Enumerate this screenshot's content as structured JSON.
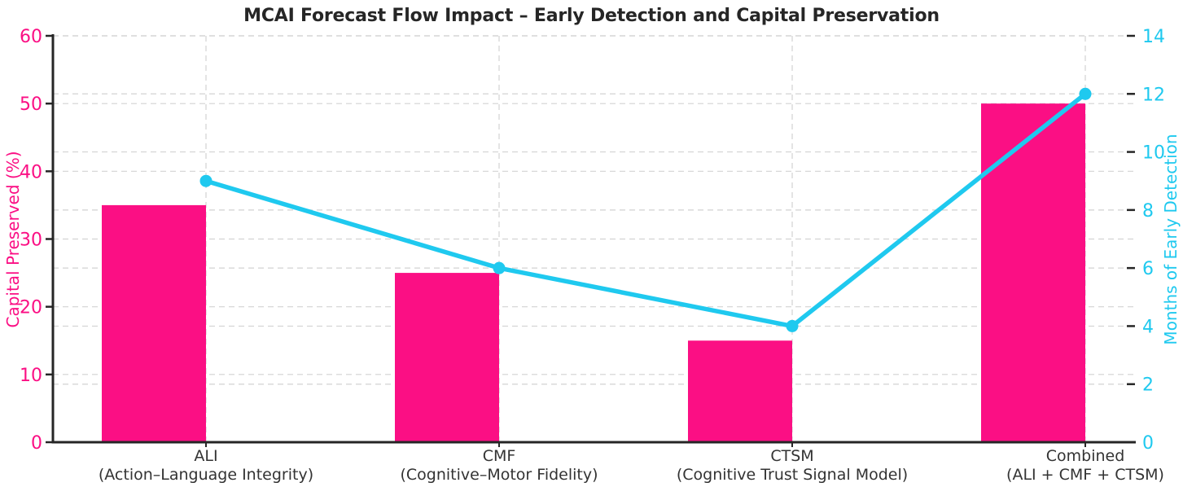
{
  "title": "MCAI Forecast Flow Impact – Early Detection and Capital Preservation",
  "colors": {
    "title": "#262626",
    "spine": "#262626",
    "xtick_label": "#333333",
    "grid": "#d2d2d2",
    "background": "#ffffff",
    "bar_pink": "#FB0F84",
    "line_cyan": "#1FC9EF"
  },
  "chart_data": {
    "type": "bar",
    "overlay": "line",
    "title": "MCAI Forecast Flow Impact – Early Detection and Capital Preservation",
    "categories": [
      "ALI",
      "CMF",
      "CTSM",
      "Combined"
    ],
    "category_sublabels": [
      "(Action–Language Integrity)",
      "(Cognitive–Motor Fidelity)",
      "(Cognitive Trust Signal Model)",
      "(ALI + CMF + CTSM)"
    ],
    "series": [
      {
        "name": "Capital Preserved (%)",
        "type": "bar",
        "axis": "left",
        "color": "#FB0F84",
        "values": [
          35,
          25,
          15,
          50
        ]
      },
      {
        "name": "Months of Early Detection",
        "type": "line",
        "axis": "right",
        "color": "#1FC9EF",
        "values": [
          9,
          6,
          4,
          12
        ]
      }
    ],
    "left_axis": {
      "label": "Capital Preserved (%)",
      "color": "#FB0F84",
      "min": 0,
      "max": 60,
      "ticks": [
        0,
        10,
        20,
        30,
        40,
        50,
        60
      ]
    },
    "right_axis": {
      "label": "Months of Early Detection",
      "color": "#1FC9EF",
      "min": 0,
      "max": 14,
      "ticks": [
        0,
        2,
        4,
        6,
        8,
        10,
        12,
        14
      ]
    },
    "grid": {
      "style": "dashed",
      "horizontal": "both-left-and-right-axis-ticks",
      "vertical": "at-category-centers",
      "color": "#d2d2d2"
    },
    "legend": "none"
  }
}
